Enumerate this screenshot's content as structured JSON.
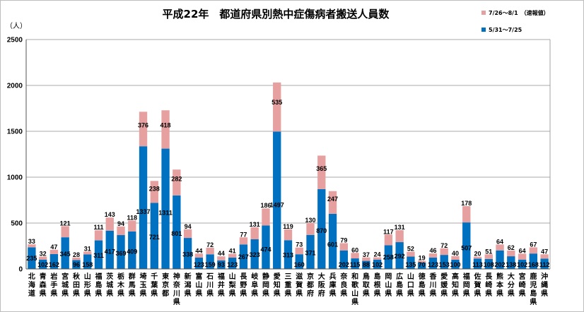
{
  "chart_data": {
    "type": "bar",
    "stacked": true,
    "title": "平成22年　都道府県別熱中症傷病者搬送人員数",
    "y_unit": "（人）",
    "ylim": [
      0,
      2500
    ],
    "yticks": [
      "0",
      "500",
      "1000",
      "1500",
      "2000",
      "2500"
    ],
    "grid": true,
    "legend_position": "top-right",
    "categories": [
      "北海道",
      "青森県",
      "岩手県",
      "宮城県",
      "秋田県",
      "山形県",
      "福島県",
      "茨城県",
      "栃木県",
      "群馬県",
      "埼玉県",
      "千葉県",
      "東京都",
      "神奈川県",
      "新潟県",
      "富山県",
      "石川県",
      "福井県",
      "山梨県",
      "長野県",
      "岐阜県",
      "静岡県",
      "愛知県",
      "三重県",
      "滋賀県",
      "京都府",
      "大阪府",
      "兵庫県",
      "奈良県",
      "和歌山県",
      "鳥取県",
      "島根県",
      "岡山県",
      "広島県",
      "山口県",
      "徳島県",
      "香川県",
      "愛媛県",
      "高知県",
      "福岡県",
      "佐賀県",
      "長崎県",
      "熊本県",
      "大分県",
      "宮崎県",
      "鹿児島県",
      "沖縄県"
    ],
    "series": [
      {
        "name": "5/31～7/25",
        "color": "#0070c0",
        "values": [
          235,
          102,
          162,
          345,
          96,
          158,
          311,
          417,
          369,
          409,
          1337,
          721,
          1311,
          801,
          338,
          123,
          159,
          93,
          123,
          267,
          323,
          474,
          1497,
          313,
          160,
          371,
          870,
          601,
          202,
          115,
          88,
          102,
          258,
          292,
          135,
          70,
          123,
          153,
          100,
          507,
          113,
          108,
          202,
          138,
          102,
          168,
          112
        ]
      },
      {
        "name": "7/26～8/1　（速報値）",
        "color": "#e6a0a0",
        "values": [
          33,
          32,
          47,
          121,
          28,
          31,
          111,
          143,
          94,
          118,
          376,
          238,
          418,
          282,
          94,
          44,
          72,
          44,
          41,
          77,
          131,
          186,
          535,
          119,
          73,
          130,
          365,
          247,
          79,
          60,
          37,
          24,
          117,
          131,
          52,
          19,
          46,
          72,
          40,
          178,
          20,
          51,
          64,
          62,
          64,
          67,
          47
        ]
      }
    ]
  }
}
